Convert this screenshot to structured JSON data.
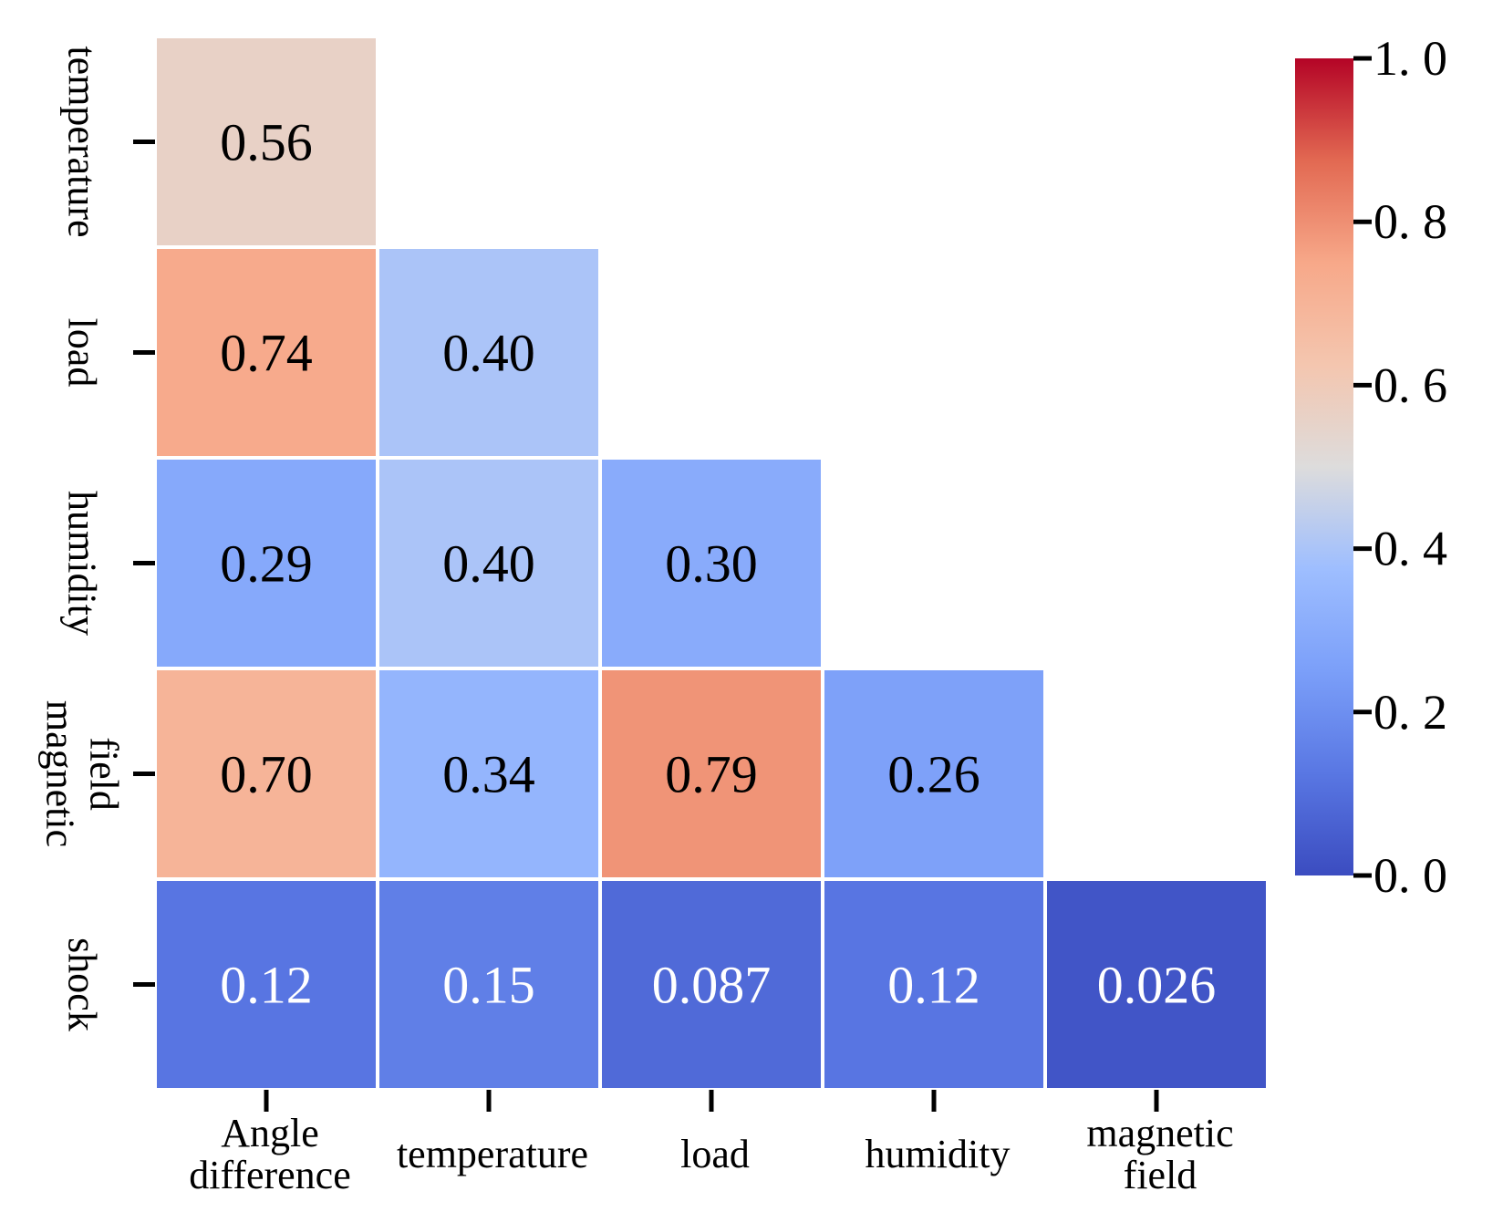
{
  "chart_data": {
    "type": "heatmap",
    "title": "",
    "xlabel": "",
    "ylabel": "",
    "x_categories": [
      [
        "Angle",
        "difference"
      ],
      [
        "temperature"
      ],
      [
        "load"
      ],
      [
        "humidity"
      ],
      [
        "magnetic",
        "field"
      ]
    ],
    "y_categories": [
      [
        "temperature"
      ],
      [
        "load"
      ],
      [
        "humidity"
      ],
      [
        "magnetic",
        "field"
      ],
      [
        "shock"
      ]
    ],
    "values": [
      [
        "0.56",
        null,
        null,
        null,
        null
      ],
      [
        "0.74",
        "0.40",
        null,
        null,
        null
      ],
      [
        "0.29",
        "0.40",
        "0.30",
        null,
        null
      ],
      [
        "0.70",
        "0.34",
        "0.79",
        "0.26",
        null
      ],
      [
        "0.12",
        "0.15",
        "0.087",
        "0.12",
        "0.026"
      ]
    ],
    "mask": "upper-triangle",
    "colormap": "coolwarm",
    "vmin": 0.0,
    "vmax": 1.0,
    "colorbar_ticks": [
      "0. 0",
      "0. 2",
      "0. 4",
      "0. 6",
      "0. 8",
      "1. 0"
    ],
    "colorbar_tick_values": [
      0.0,
      0.2,
      0.4,
      0.6,
      0.8,
      1.0
    ],
    "grid_line_color": "#ffffff"
  }
}
